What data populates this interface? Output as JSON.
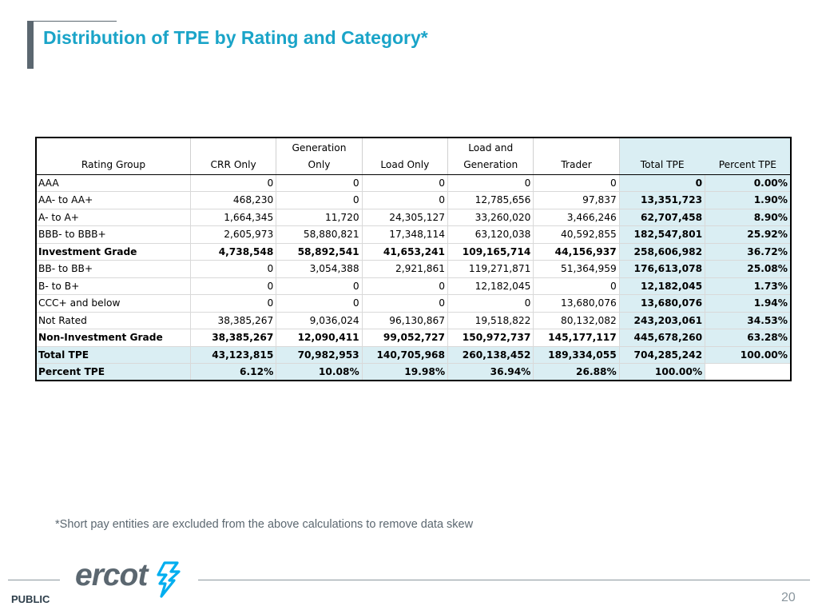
{
  "title": "Distribution of TPE by Rating and Category*",
  "table": {
    "headers": {
      "rating_group": "Rating Group",
      "crr_only": "CRR Only",
      "generation_only_l1": "Generation",
      "generation_only_l2": "Only",
      "load_only": "Load Only",
      "load_gen_l1": "Load and",
      "load_gen_l2": "Generation",
      "trader": "Trader",
      "total_tpe": "Total TPE",
      "percent_tpe": "Percent TPE"
    },
    "rows": [
      {
        "label": "AAA",
        "crr": "0",
        "gen": "0",
        "load": "0",
        "loadgen": "0",
        "trader": "0",
        "total": "0",
        "pct": "0.00%"
      },
      {
        "label": "AA- to AA+",
        "crr": "468,230",
        "gen": "0",
        "load": "0",
        "loadgen": "12,785,656",
        "trader": "97,837",
        "total": "13,351,723",
        "pct": "1.90%"
      },
      {
        "label": "A- to A+",
        "crr": "1,664,345",
        "gen": "11,720",
        "load": "24,305,127",
        "loadgen": "33,260,020",
        "trader": "3,466,246",
        "total": "62,707,458",
        "pct": "8.90%"
      },
      {
        "label": "BBB- to BBB+",
        "crr": "2,605,973",
        "gen": "58,880,821",
        "load": "17,348,114",
        "loadgen": "63,120,038",
        "trader": "40,592,855",
        "total": "182,547,801",
        "pct": "25.92%"
      },
      {
        "label": "Investment Grade",
        "crr": "4,738,548",
        "gen": "58,892,541",
        "load": "41,653,241",
        "loadgen": "109,165,714",
        "trader": "44,156,937",
        "total": "258,606,982",
        "pct": "36.72%"
      },
      {
        "label": "BB- to BB+",
        "crr": "0",
        "gen": "3,054,388",
        "load": "2,921,861",
        "loadgen": "119,271,871",
        "trader": "51,364,959",
        "total": "176,613,078",
        "pct": "25.08%"
      },
      {
        "label": "B- to B+",
        "crr": "0",
        "gen": "0",
        "load": "0",
        "loadgen": "12,182,045",
        "trader": "0",
        "total": "12,182,045",
        "pct": "1.73%"
      },
      {
        "label": "CCC+ and below",
        "crr": "0",
        "gen": "0",
        "load": "0",
        "loadgen": "0",
        "trader": "13,680,076",
        "total": "13,680,076",
        "pct": "1.94%"
      },
      {
        "label": "Not Rated",
        "crr": "38,385,267",
        "gen": "9,036,024",
        "load": "96,130,867",
        "loadgen": "19,518,822",
        "trader": "80,132,082",
        "total": "243,203,061",
        "pct": "34.53%"
      },
      {
        "label": "Non-Investment Grade",
        "crr": "38,385,267",
        "gen": "12,090,411",
        "load": "99,052,727",
        "loadgen": "150,972,737",
        "trader": "145,177,117",
        "total": "445,678,260",
        "pct": "63.28%"
      },
      {
        "label": "Total TPE",
        "crr": "43,123,815",
        "gen": "70,982,953",
        "load": "140,705,968",
        "loadgen": "260,138,452",
        "trader": "189,334,055",
        "total": "704,285,242",
        "pct": "100.00%"
      },
      {
        "label": "Percent TPE",
        "crr": "6.12%",
        "gen": "10.08%",
        "load": "19.98%",
        "loadgen": "36.94%",
        "trader": "26.88%",
        "total": "100.00%",
        "pct": ""
      }
    ]
  },
  "footnote": "*Short pay entities are excluded from the above calculations to remove data skew",
  "footer": {
    "logo_text": "ercot",
    "classification": "PUBLIC",
    "page_number": "20"
  },
  "colors": {
    "title": "#1aa4c8",
    "highlight": "#daeef3",
    "gray": "#5b6770",
    "logo_mark": "#00aeef"
  },
  "icons": {
    "logo_mark": "ercot-bolt-icon"
  }
}
